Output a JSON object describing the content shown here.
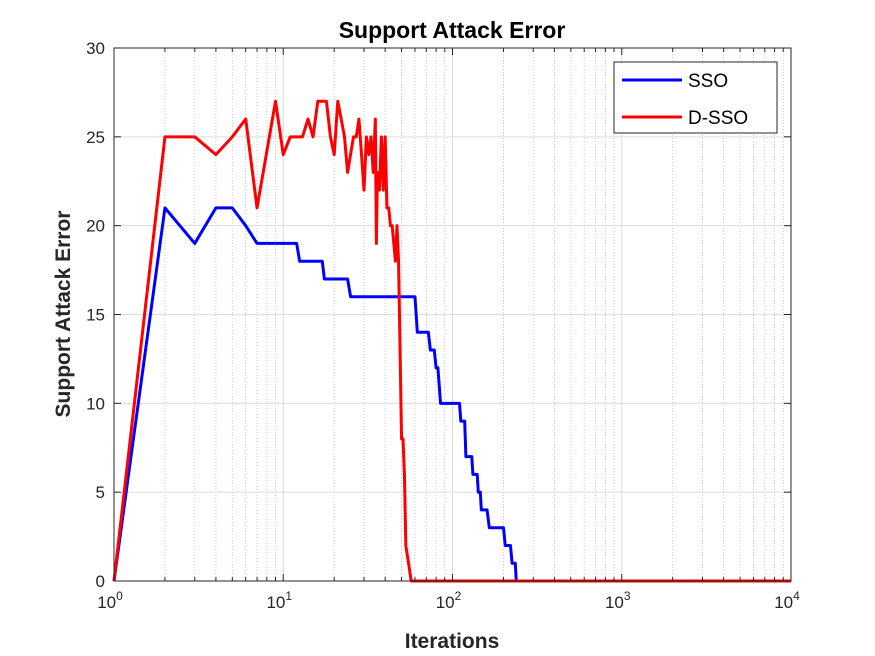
{
  "chart_data": {
    "type": "line",
    "title": "Support Attack Error",
    "xlabel": "Iterations",
    "ylabel": "Support Attack Error",
    "xscale": "log",
    "xlim": [
      1,
      10000
    ],
    "ylim": [
      0,
      30
    ],
    "grid": true,
    "legend_position": "top-right",
    "xticks": [
      {
        "base": "10",
        "exp": "0",
        "value": 1
      },
      {
        "base": "10",
        "exp": "1",
        "value": 10
      },
      {
        "base": "10",
        "exp": "2",
        "value": 100
      },
      {
        "base": "10",
        "exp": "3",
        "value": 1000
      },
      {
        "base": "10",
        "exp": "4",
        "value": 10000
      }
    ],
    "yticks": [
      "0",
      "5",
      "10",
      "15",
      "20",
      "25",
      "30"
    ],
    "series": [
      {
        "name": "SSO",
        "color": "#0000ff",
        "points": [
          [
            1,
            0
          ],
          [
            2,
            21
          ],
          [
            3,
            19
          ],
          [
            4,
            21
          ],
          [
            5,
            21
          ],
          [
            6,
            20
          ],
          [
            7,
            19
          ],
          [
            10,
            19
          ],
          [
            12,
            19
          ],
          [
            12.5,
            18
          ],
          [
            16,
            18
          ],
          [
            17,
            18
          ],
          [
            17.5,
            17
          ],
          [
            22,
            17
          ],
          [
            24,
            17
          ],
          [
            25,
            16
          ],
          [
            30,
            16
          ],
          [
            40,
            16
          ],
          [
            60,
            16
          ],
          [
            62,
            14
          ],
          [
            72,
            14
          ],
          [
            74,
            13
          ],
          [
            78,
            13
          ],
          [
            80,
            12
          ],
          [
            82,
            12
          ],
          [
            85,
            10
          ],
          [
            105,
            10
          ],
          [
            110,
            10
          ],
          [
            112,
            9
          ],
          [
            118,
            9
          ],
          [
            120,
            7
          ],
          [
            130,
            7
          ],
          [
            132,
            6
          ],
          [
            140,
            6
          ],
          [
            142,
            5
          ],
          [
            146,
            5
          ],
          [
            148,
            4
          ],
          [
            160,
            4
          ],
          [
            165,
            3
          ],
          [
            200,
            3
          ],
          [
            205,
            2
          ],
          [
            220,
            2
          ],
          [
            225,
            1
          ],
          [
            235,
            1
          ],
          [
            238,
            0
          ],
          [
            10000,
            0
          ]
        ]
      },
      {
        "name": "D-SSO",
        "color": "#ff0000",
        "points": [
          [
            1,
            0
          ],
          [
            2,
            25
          ],
          [
            3,
            25
          ],
          [
            4,
            24
          ],
          [
            5,
            25
          ],
          [
            6,
            26
          ],
          [
            7,
            21
          ],
          [
            9,
            27
          ],
          [
            10,
            24
          ],
          [
            11,
            25
          ],
          [
            13,
            25
          ],
          [
            14,
            26
          ],
          [
            15,
            25
          ],
          [
            16,
            27
          ],
          [
            17,
            27
          ],
          [
            18,
            27
          ],
          [
            19,
            25
          ],
          [
            20,
            24
          ],
          [
            21,
            27
          ],
          [
            22,
            26
          ],
          [
            23,
            25
          ],
          [
            24,
            23
          ],
          [
            26,
            25
          ],
          [
            27,
            25
          ],
          [
            28,
            26
          ],
          [
            29,
            24
          ],
          [
            30,
            22
          ],
          [
            31,
            25
          ],
          [
            32,
            24
          ],
          [
            33,
            25
          ],
          [
            34,
            23
          ],
          [
            35,
            26
          ],
          [
            35.5,
            19
          ],
          [
            36,
            23
          ],
          [
            37,
            22
          ],
          [
            38,
            25
          ],
          [
            39,
            22
          ],
          [
            40,
            25
          ],
          [
            41,
            21
          ],
          [
            42,
            21
          ],
          [
            43,
            20
          ],
          [
            44,
            20
          ],
          [
            45,
            19
          ],
          [
            46,
            18
          ],
          [
            47,
            20
          ],
          [
            48,
            18
          ],
          [
            49,
            13
          ],
          [
            50,
            8
          ],
          [
            51,
            8
          ],
          [
            52,
            6
          ],
          [
            53,
            2
          ],
          [
            55,
            1
          ],
          [
            57,
            0
          ],
          [
            10000,
            0
          ]
        ]
      }
    ]
  }
}
